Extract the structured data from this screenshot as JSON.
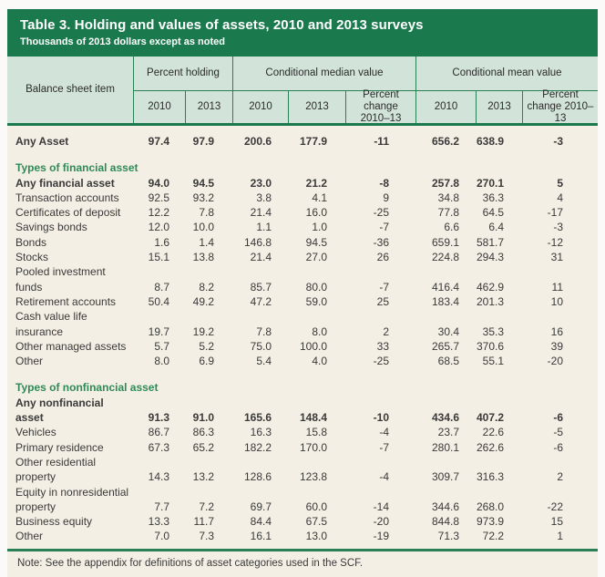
{
  "table": {
    "title": "Table 3. Holding and values of assets, 2010 and 2013 surveys",
    "subtitle": "Thousands of 2013 dollars except as noted",
    "note": "Note: See the appendix for definitions of asset categories used in the SCF.",
    "header": {
      "item_col": "Balance sheet item",
      "groups": [
        {
          "label": "Percent holding",
          "cols": [
            "2010",
            "2013"
          ]
        },
        {
          "label": "Conditional median value",
          "cols": [
            "2010",
            "2013",
            "Percent change 2010–13"
          ]
        },
        {
          "label": "Conditional mean value",
          "cols": [
            "2010",
            "2013",
            "Percent change 2010–13"
          ]
        }
      ]
    },
    "sections": [
      {
        "header": null,
        "rows": [
          {
            "label": "Any Asset",
            "bold": true,
            "values": [
              "97.4",
              "97.9",
              "200.6",
              "177.9",
              "-11",
              "656.2",
              "638.9",
              "-3"
            ]
          }
        ]
      },
      {
        "header": "Types of financial asset",
        "rows": [
          {
            "label": "Any financial asset",
            "bold": true,
            "values": [
              "94.0",
              "94.5",
              "23.0",
              "21.2",
              "-8",
              "257.8",
              "270.1",
              "5"
            ]
          },
          {
            "label": "Transaction accounts",
            "bold": false,
            "values": [
              "92.5",
              "93.2",
              "3.8",
              "4.1",
              "9",
              "34.8",
              "36.3",
              "4"
            ]
          },
          {
            "label": "Certificates of deposit",
            "bold": false,
            "values": [
              "12.2",
              "7.8",
              "21.4",
              "16.0",
              "-25",
              "77.8",
              "64.5",
              "-17"
            ]
          },
          {
            "label": "Savings bonds",
            "bold": false,
            "values": [
              "12.0",
              "10.0",
              "1.1",
              "1.0",
              "-7",
              "6.6",
              "6.4",
              "-3"
            ]
          },
          {
            "label": "Bonds",
            "bold": false,
            "values": [
              "1.6",
              "1.4",
              "146.8",
              "94.5",
              "-36",
              "659.1",
              "581.7",
              "-12"
            ]
          },
          {
            "label": "Stocks",
            "bold": false,
            "values": [
              "15.1",
              "13.8",
              "21.4",
              "27.0",
              "26",
              "224.8",
              "294.3",
              "31"
            ]
          },
          {
            "label": "Pooled investment funds",
            "bold": false,
            "values": [
              "8.7",
              "8.2",
              "85.7",
              "80.0",
              "-7",
              "416.4",
              "462.9",
              "11"
            ]
          },
          {
            "label": "Retirement accounts",
            "bold": false,
            "values": [
              "50.4",
              "49.2",
              "47.2",
              "59.0",
              "25",
              "183.4",
              "201.3",
              "10"
            ]
          },
          {
            "label": "Cash value life insurance",
            "bold": false,
            "values": [
              "19.7",
              "19.2",
              "7.8",
              "8.0",
              "2",
              "30.4",
              "35.3",
              "16"
            ]
          },
          {
            "label": "Other managed assets",
            "bold": false,
            "values": [
              "5.7",
              "5.2",
              "75.0",
              "100.0",
              "33",
              "265.7",
              "370.6",
              "39"
            ]
          },
          {
            "label": "Other",
            "bold": false,
            "values": [
              "8.0",
              "6.9",
              "5.4",
              "4.0",
              "-25",
              "68.5",
              "55.1",
              "-20"
            ]
          }
        ]
      },
      {
        "header": "Types of nonfinancial asset",
        "rows": [
          {
            "label": "Any nonfinancial asset",
            "bold": true,
            "values": [
              "91.3",
              "91.0",
              "165.6",
              "148.4",
              "-10",
              "434.6",
              "407.2",
              "-6"
            ]
          },
          {
            "label": "Vehicles",
            "bold": false,
            "values": [
              "86.7",
              "86.3",
              "16.3",
              "15.8",
              "-4",
              "23.7",
              "22.6",
              "-5"
            ]
          },
          {
            "label": "Primary residence",
            "bold": false,
            "values": [
              "67.3",
              "65.2",
              "182.2",
              "170.0",
              "-7",
              "280.1",
              "262.6",
              "-6"
            ]
          },
          {
            "label": "Other residential property",
            "bold": false,
            "values": [
              "14.3",
              "13.2",
              "128.6",
              "123.8",
              "-4",
              "309.7",
              "316.3",
              "2"
            ]
          },
          {
            "label": "Equity in nonresidential property",
            "bold": false,
            "values": [
              "7.7",
              "7.2",
              "69.7",
              "60.0",
              "-14",
              "344.6",
              "268.0",
              "-22"
            ]
          },
          {
            "label": "Business equity",
            "bold": false,
            "values": [
              "13.3",
              "11.7",
              "84.4",
              "67.5",
              "-20",
              "844.8",
              "973.9",
              "15"
            ]
          },
          {
            "label": "Other",
            "bold": false,
            "values": [
              "7.0",
              "7.3",
              "16.1",
              "13.0",
              "-19",
              "71.3",
              "72.2",
              "1"
            ]
          }
        ]
      }
    ],
    "colors": {
      "header_green": "#1a7a4d",
      "header_light_green": "#d2e3d9",
      "section_text_green": "#2e8b57",
      "body_cream": "#f4efe4"
    }
  }
}
